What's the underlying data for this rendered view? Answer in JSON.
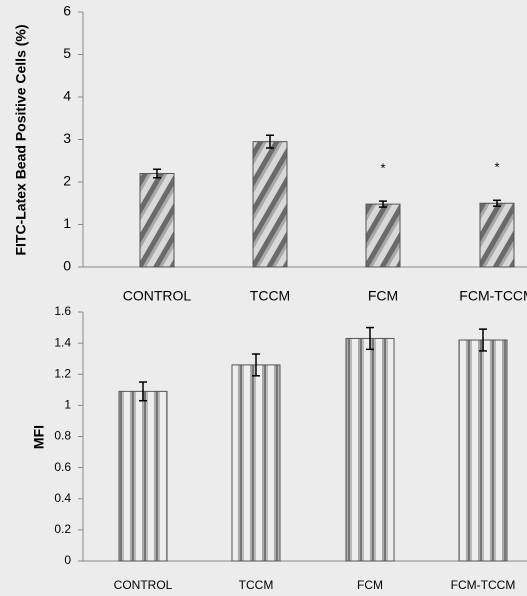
{
  "chart_data": [
    {
      "type": "bar",
      "y_label": "FITC-Latex Bead Positive Cells (%)",
      "categories": [
        "CONTROL",
        "TCCM",
        "FCM",
        "FCM-TCCM"
      ],
      "values": [
        2.2,
        2.95,
        1.48,
        1.5
      ],
      "errors": [
        0.1,
        0.15,
        0.07,
        0.07
      ],
      "annotations": [
        null,
        null,
        "*",
        "*"
      ],
      "ylim": [
        0,
        6
      ],
      "yticks": [
        0,
        1,
        2,
        3,
        4,
        5,
        6
      ],
      "color": "#8c8c8c"
    },
    {
      "type": "bar",
      "y_label": "MFI",
      "categories": [
        "CONTROL",
        "TCCM",
        "FCM",
        "FCM-TCCM"
      ],
      "values": [
        1.09,
        1.26,
        1.43,
        1.42
      ],
      "errors": [
        0.06,
        0.07,
        0.07,
        0.07
      ],
      "ylim": [
        0,
        1.6
      ],
      "yticks": [
        0,
        0.2,
        0.4,
        0.6,
        0.8,
        1,
        1.2,
        1.4,
        1.6
      ],
      "color": "#8c8c8c"
    }
  ]
}
